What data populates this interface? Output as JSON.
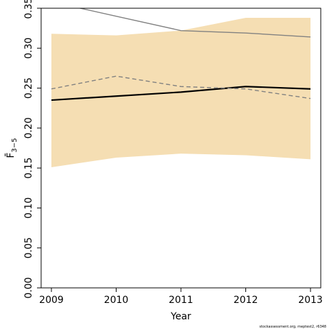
{
  "chart_data": {
    "type": "line",
    "xlabel": "Year",
    "ylabel": "F̄",
    "ylabel_subscript": "3−5",
    "x": [
      2009,
      2010,
      2011,
      2012,
      2013
    ],
    "xlim": [
      2009,
      2013
    ],
    "ylim": [
      0,
      0.35
    ],
    "x_ticks": [
      2009,
      2010,
      2011,
      2012,
      2013
    ],
    "y_ticks": [
      "0.00",
      "0.05",
      "0.10",
      "0.15",
      "0.20",
      "0.25",
      "0.30",
      "0.35"
    ],
    "grid": false,
    "legend": "none",
    "band": {
      "lower": [
        0.151,
        0.163,
        0.168,
        0.166,
        0.161
      ],
      "upper": [
        0.318,
        0.316,
        0.322,
        0.338,
        0.338
      ],
      "color": "#F5DEB3"
    },
    "series": [
      {
        "style": "solid-thick",
        "color": "#000000",
        "values": [
          0.235,
          0.24,
          0.245,
          0.252,
          0.249
        ]
      },
      {
        "style": "dashed",
        "color": "#808080",
        "values": [
          0.249,
          0.265,
          0.252,
          0.249,
          0.237
        ]
      },
      {
        "style": "solid-thin",
        "color": "#808080",
        "values": [
          0.358,
          0.34,
          0.322,
          0.319,
          0.314
        ]
      }
    ]
  },
  "footer": {
    "credit": "stockassessment.org, meptest2, r6348"
  }
}
